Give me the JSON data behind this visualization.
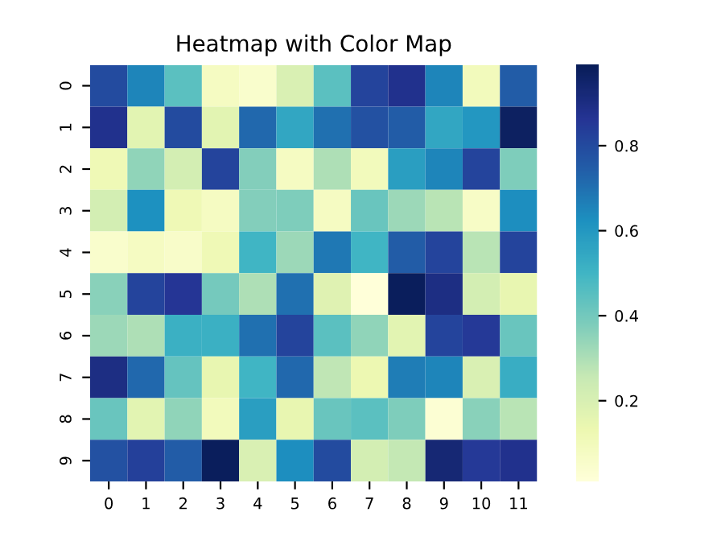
{
  "chart_data": {
    "type": "heatmap",
    "title": "Heatmap with Color Map",
    "categories": [
      "0",
      "1",
      "2",
      "3",
      "4",
      "5",
      "6",
      "7",
      "8",
      "9",
      "10",
      "11"
    ],
    "y_categories": [
      "0",
      "1",
      "2",
      "3",
      "4",
      "5",
      "6",
      "7",
      "8",
      "9"
    ],
    "cells": [
      [
        0.8,
        0.65,
        0.45,
        0.08,
        0.05,
        0.2,
        0.45,
        0.82,
        0.88,
        0.65,
        0.1,
        0.75
      ],
      [
        0.88,
        0.17,
        0.8,
        0.17,
        0.72,
        0.55,
        0.7,
        0.78,
        0.75,
        0.55,
        0.6,
        0.97
      ],
      [
        0.12,
        0.35,
        0.22,
        0.82,
        0.37,
        0.08,
        0.3,
        0.1,
        0.58,
        0.65,
        0.82,
        0.38
      ],
      [
        0.22,
        0.62,
        0.12,
        0.08,
        0.37,
        0.38,
        0.08,
        0.42,
        0.33,
        0.28,
        0.07,
        0.63
      ],
      [
        0.05,
        0.08,
        0.06,
        0.12,
        0.5,
        0.33,
        0.68,
        0.5,
        0.75,
        0.82,
        0.28,
        0.82
      ],
      [
        0.36,
        0.82,
        0.86,
        0.4,
        0.3,
        0.7,
        0.18,
        0.01,
        0.98,
        0.9,
        0.22,
        0.15
      ],
      [
        0.33,
        0.3,
        0.52,
        0.52,
        0.7,
        0.82,
        0.45,
        0.35,
        0.17,
        0.82,
        0.85,
        0.42
      ],
      [
        0.9,
        0.72,
        0.43,
        0.15,
        0.5,
        0.72,
        0.27,
        0.13,
        0.67,
        0.65,
        0.2,
        0.53
      ],
      [
        0.42,
        0.17,
        0.35,
        0.1,
        0.58,
        0.15,
        0.42,
        0.45,
        0.38,
        0.03,
        0.36,
        0.28
      ],
      [
        0.78,
        0.83,
        0.75,
        0.98,
        0.2,
        0.63,
        0.8,
        0.22,
        0.26,
        0.93,
        0.85,
        0.88
      ]
    ],
    "clim": [
      0.01,
      0.99
    ],
    "cticks": [
      0.2,
      0.4,
      0.6,
      0.8
    ]
  }
}
